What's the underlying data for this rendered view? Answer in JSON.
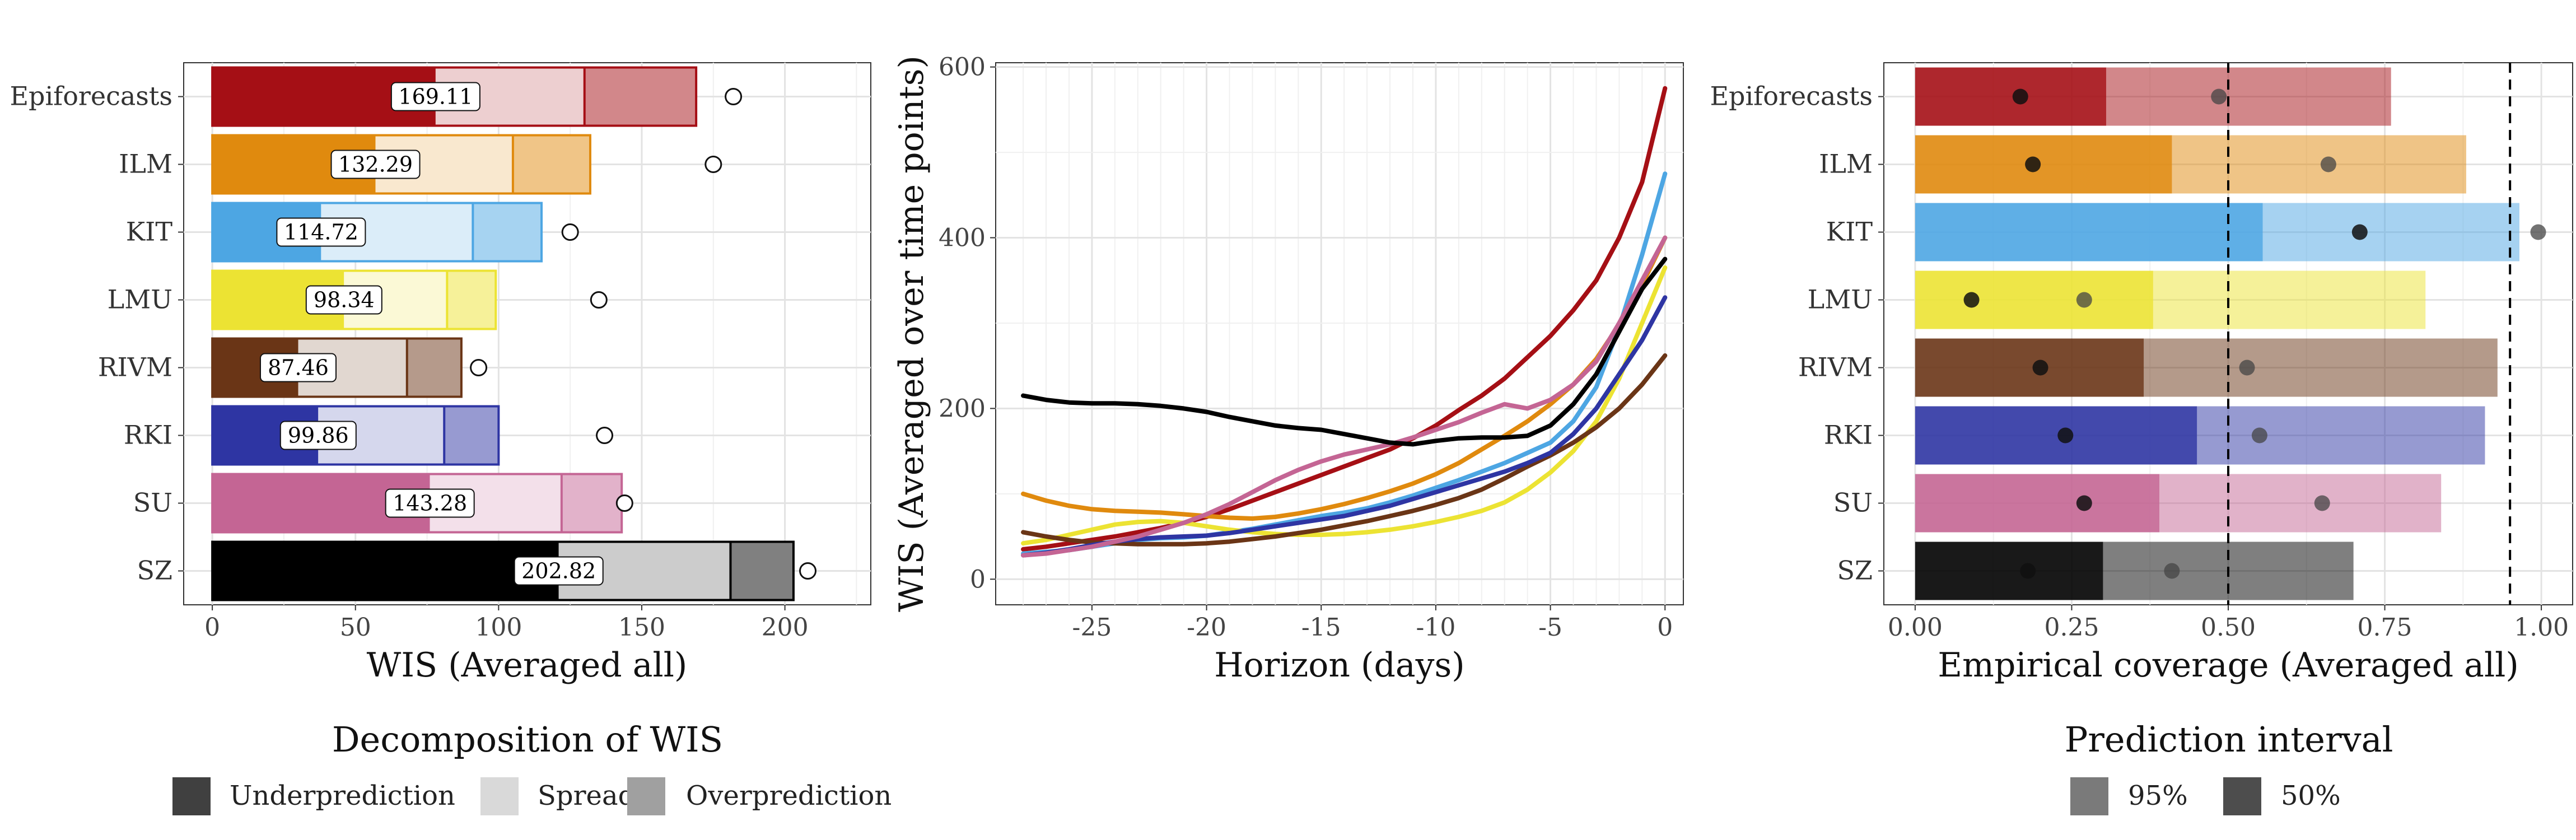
{
  "colors": {
    "Epiforecasts": "#a50f15",
    "ILM": "#e08a0e",
    "KIT": "#4da6e3",
    "LMU": "#ece333",
    "RIVM": "#6a3516",
    "RKI": "#2e35a3",
    "SU": "#c46594",
    "SZ": "#000000"
  },
  "chart_data": [
    {
      "type": "bar",
      "stacked": true,
      "orientation": "horizontal",
      "categories": [
        "Epiforecasts",
        "ILM",
        "KIT",
        "LMU",
        "RIVM",
        "RKI",
        "SU",
        "SZ"
      ],
      "series": [
        {
          "name": "Underprediction",
          "values": [
            78,
            57,
            38,
            46,
            30,
            37,
            76,
            121
          ]
        },
        {
          "name": "Spread",
          "values": [
            52,
            48,
            53,
            36,
            38,
            44,
            46,
            60
          ]
        },
        {
          "name": "Overprediction",
          "values": [
            39,
            27,
            24,
            17,
            19,
            19,
            21,
            22
          ]
        }
      ],
      "value_labels": [
        "169.11",
        "132.29",
        "114.72",
        "98.34",
        "87.46",
        "99.86",
        "143.28",
        "202.82"
      ],
      "points": [
        182,
        175,
        125,
        135,
        93,
        137,
        144,
        208
      ],
      "xlabel": "WIS (Averaged all)",
      "xticks": [
        "0",
        "50",
        "100",
        "150",
        "200"
      ],
      "xlim": [
        -10,
        230
      ],
      "grid": true,
      "legend": {
        "title": "Decomposition of WIS",
        "items": [
          "Underprediction",
          "Spread",
          "Overprediction"
        ],
        "placement": "bottom"
      }
    },
    {
      "type": "line",
      "x": [
        -28,
        -27,
        -26,
        -25,
        -24,
        -23,
        -22,
        -21,
        -20,
        -19,
        -18,
        -17,
        -16,
        -15,
        -14,
        -13,
        -12,
        -11,
        -10,
        -9,
        -8,
        -7,
        -6,
        -5,
        -4,
        -3,
        -2,
        -1,
        0
      ],
      "series": [
        {
          "name": "Epiforecasts",
          "values": [
            35,
            38,
            42,
            46,
            50,
            55,
            60,
            66,
            73,
            82,
            92,
            102,
            112,
            122,
            132,
            142,
            152,
            165,
            180,
            198,
            215,
            235,
            260,
            285,
            315,
            350,
            400,
            465,
            575
          ]
        },
        {
          "name": "ILM",
          "values": [
            100,
            92,
            86,
            82,
            80,
            79,
            78,
            76,
            74,
            72,
            71,
            73,
            77,
            82,
            88,
            95,
            103,
            112,
            123,
            136,
            152,
            168,
            185,
            205,
            228,
            258,
            298,
            345,
            400
          ]
        },
        {
          "name": "KIT",
          "values": [
            30,
            32,
            34,
            38,
            42,
            46,
            48,
            49,
            51,
            55,
            59,
            64,
            69,
            74,
            78,
            83,
            90,
            98,
            107,
            116,
            126,
            136,
            148,
            160,
            185,
            225,
            295,
            380,
            475
          ]
        },
        {
          "name": "LMU",
          "values": [
            42,
            46,
            52,
            58,
            64,
            67,
            68,
            66,
            62,
            58,
            55,
            53,
            52,
            52,
            53,
            55,
            58,
            62,
            67,
            73,
            80,
            90,
            105,
            125,
            150,
            185,
            235,
            300,
            365
          ]
        },
        {
          "name": "RIVM",
          "values": [
            55,
            50,
            46,
            43,
            42,
            41,
            41,
            41,
            42,
            44,
            47,
            50,
            54,
            58,
            63,
            68,
            74,
            80,
            87,
            95,
            105,
            118,
            132,
            145,
            160,
            178,
            200,
            228,
            262
          ]
        },
        {
          "name": "RKI",
          "values": [
            28,
            31,
            35,
            40,
            44,
            47,
            49,
            50,
            51,
            54,
            58,
            62,
            66,
            70,
            74,
            80,
            86,
            94,
            102,
            110,
            118,
            126,
            136,
            148,
            170,
            200,
            240,
            280,
            330
          ]
        },
        {
          "name": "SU",
          "values": [
            28,
            30,
            34,
            38,
            44,
            50,
            58,
            66,
            76,
            88,
            102,
            116,
            128,
            138,
            146,
            152,
            158,
            166,
            175,
            184,
            195,
            205,
            200,
            210,
            228,
            255,
            300,
            350,
            400
          ]
        },
        {
          "name": "SZ",
          "values": [
            215,
            210,
            207,
            206,
            206,
            205,
            203,
            200,
            196,
            190,
            185,
            180,
            177,
            175,
            170,
            165,
            160,
            158,
            162,
            165,
            166,
            166,
            168,
            180,
            205,
            240,
            290,
            340,
            375
          ]
        }
      ],
      "xlabel": "Horizon (days)",
      "ylabel": "WIS (Averaged over time points)",
      "xticks": [
        "-25",
        "-20",
        "-15",
        "-10",
        "-5",
        "0"
      ],
      "yticks": [
        "0",
        "200",
        "400",
        "600"
      ],
      "xlim": [
        -29.2,
        0.8
      ],
      "ylim": [
        -30,
        605
      ],
      "grid": true
    },
    {
      "type": "bar",
      "orientation": "horizontal",
      "categories": [
        "Epiforecasts",
        "ILM",
        "KIT",
        "LMU",
        "RIVM",
        "RKI",
        "SU",
        "SZ"
      ],
      "series": [
        {
          "name": "95%",
          "values": [
            0.76,
            0.88,
            0.965,
            0.815,
            0.93,
            0.91,
            0.84,
            0.7
          ]
        },
        {
          "name": "50%",
          "values": [
            0.305,
            0.41,
            0.555,
            0.38,
            0.365,
            0.45,
            0.39,
            0.3
          ]
        }
      ],
      "points_50": [
        0.168,
        0.188,
        0.71,
        0.09,
        0.2,
        0.24,
        0.27,
        0.18
      ],
      "points_95": [
        0.485,
        0.66,
        0.995,
        0.27,
        0.53,
        0.55,
        0.65,
        0.41
      ],
      "reference_lines": [
        0.5,
        0.95
      ],
      "xlabel": "Empirical coverage (Averaged all)",
      "xticks": [
        "0.00",
        "0.25",
        "0.50",
        "0.75",
        "1.00"
      ],
      "xlim": [
        -0.05,
        1.05
      ],
      "grid": true,
      "legend": {
        "title": "Prediction interval",
        "items": [
          "95%",
          "50%"
        ],
        "placement": "bottom"
      }
    }
  ]
}
